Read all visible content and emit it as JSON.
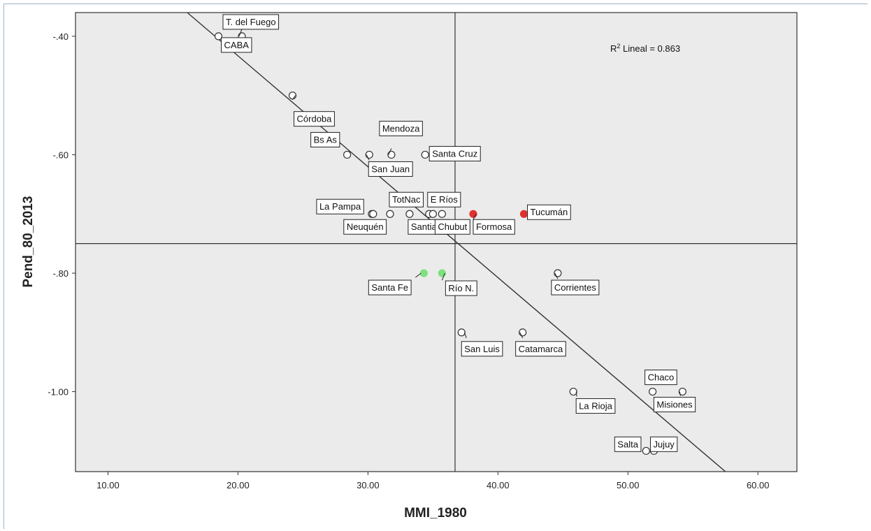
{
  "chart_data": {
    "type": "scatter",
    "xlabel": "MMI_1980",
    "ylabel": "Pend_80_2013",
    "xlim": [
      7.5,
      63
    ],
    "ylim": [
      -1.135,
      -0.36
    ],
    "x_ticks": [
      10,
      20,
      30,
      40,
      50,
      60
    ],
    "x_tick_labels": [
      "10.00",
      "20.00",
      "30.00",
      "40.00",
      "50.00",
      "60.00"
    ],
    "y_ticks": [
      -0.4,
      -0.6,
      -0.8,
      -1.0
    ],
    "y_tick_labels": [
      "-.40",
      "-.60",
      "-.80",
      "-1.00"
    ],
    "grid": false,
    "reference_lines": {
      "x_mean": 36.7,
      "y_mean": -0.75
    },
    "fit_line": {
      "label": "R² Lineal = 0.863",
      "r2_prefix": "R",
      "r2_sup": "2",
      "r2_suffix": " Lineal = 0.863",
      "x": [
        16.1,
        57.5
      ],
      "y": [
        -0.36,
        -1.135
      ]
    },
    "colors": {
      "plot_bg": "#ebebeb",
      "axis": "#333333",
      "marker_fill": "#ffffff",
      "marker_red": "#e03030",
      "marker_green": "#7fe07f"
    },
    "points": [
      {
        "label": "T. del Fuego",
        "x": 20.3,
        "y": -0.4,
        "color": "white"
      },
      {
        "label": "CABA",
        "x": 18.5,
        "y": -0.4,
        "color": "white"
      },
      {
        "label": "Córdoba",
        "x": 24.2,
        "y": -0.5,
        "color": "white"
      },
      {
        "label": "Bs As",
        "x": 28.4,
        "y": -0.6,
        "color": "white"
      },
      {
        "label": "Mendoza",
        "x": 31.8,
        "y": -0.6,
        "color": "white"
      },
      {
        "label": "San Juan",
        "x": 30.1,
        "y": -0.6,
        "color": "white"
      },
      {
        "label": "Santa Cruz",
        "x": 34.4,
        "y": -0.6,
        "color": "white"
      },
      {
        "label": "La Pampa",
        "x": 30.3,
        "y": -0.7,
        "color": "white"
      },
      {
        "label": "Neuquén",
        "x": 30.4,
        "y": -0.7,
        "color": "white"
      },
      {
        "label": "TotNac",
        "x": 31.7,
        "y": -0.7,
        "color": "white"
      },
      {
        "label": "Santiago",
        "x": 33.2,
        "y": -0.7,
        "color": "white"
      },
      {
        "label": "E Ríos",
        "x": 34.7,
        "y": -0.7,
        "color": "white"
      },
      {
        "label": "Chubut",
        "x": 35.0,
        "y": -0.7,
        "color": "white"
      },
      {
        "label": "",
        "x": 35.7,
        "y": -0.7,
        "color": "white"
      },
      {
        "label": "Formosa",
        "x": 38.1,
        "y": -0.7,
        "color": "red"
      },
      {
        "label": "Tucumán",
        "x": 42.0,
        "y": -0.7,
        "color": "red"
      },
      {
        "label": "Santa Fe",
        "x": 34.3,
        "y": -0.8,
        "color": "green"
      },
      {
        "label": "Río N.",
        "x": 35.7,
        "y": -0.8,
        "color": "green"
      },
      {
        "label": "Corrientes",
        "x": 44.6,
        "y": -0.8,
        "color": "white"
      },
      {
        "label": "San Luis",
        "x": 37.2,
        "y": -0.9,
        "color": "white"
      },
      {
        "label": "Catamarca",
        "x": 41.9,
        "y": -0.9,
        "color": "white"
      },
      {
        "label": "La Rioja",
        "x": 45.8,
        "y": -1.0,
        "color": "white"
      },
      {
        "label": "Chaco",
        "x": 51.9,
        "y": -1.0,
        "color": "white"
      },
      {
        "label": "Misiones",
        "x": 54.2,
        "y": -1.0,
        "color": "white"
      },
      {
        "label": "Salta",
        "x": 51.4,
        "y": -1.1,
        "color": "white"
      },
      {
        "label": "Jujuy",
        "x": 52.0,
        "y": -1.1,
        "color": "white"
      }
    ]
  }
}
